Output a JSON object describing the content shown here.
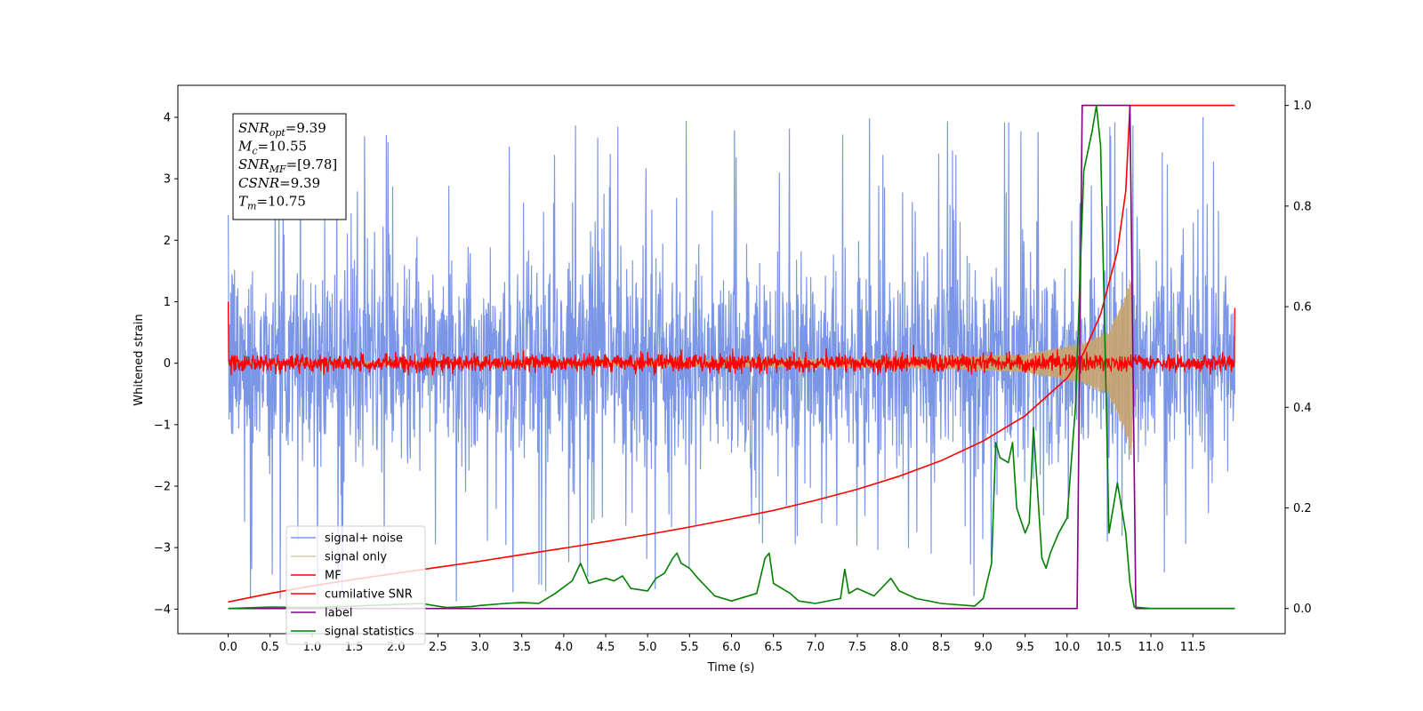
{
  "chart_data": {
    "type": "line",
    "xlabel": "Time (s)",
    "ylabel": "Whitened strain",
    "xlim": [
      -0.6,
      12.6
    ],
    "ylim_left": [
      -4.4,
      4.52
    ],
    "ylim_right": [
      -0.05,
      1.04
    ],
    "x_ticks": [
      0.0,
      0.5,
      1.0,
      1.5,
      2.0,
      2.5,
      3.0,
      3.5,
      4.0,
      4.5,
      5.0,
      5.5,
      6.0,
      6.5,
      7.0,
      7.5,
      8.0,
      8.5,
      9.0,
      9.5,
      10.0,
      10.5,
      11.0,
      11.5
    ],
    "x_tick_labels": [
      "0.0",
      "0.5",
      "1.0",
      "1.5",
      "2.0",
      "2.5",
      "3.0",
      "3.5",
      "4.0",
      "4.5",
      "5.0",
      "5.5",
      "6.0",
      "6.5",
      "7.0",
      "7.5",
      "8.0",
      "8.5",
      "9.0",
      "9.5",
      "10.0",
      "10.5",
      "11.0",
      "11.5"
    ],
    "y_left_ticks": [
      -4,
      -3,
      -2,
      -1,
      0,
      1,
      2,
      3,
      4
    ],
    "y_left_tick_labels": [
      "−4",
      "−3",
      "−2",
      "−1",
      "0",
      "1",
      "2",
      "3",
      "4"
    ],
    "y_right_ticks": [
      0.0,
      0.2,
      0.4,
      0.6,
      0.8,
      1.0
    ],
    "y_right_tick_labels": [
      "0.0",
      "0.2",
      "0.4",
      "0.6",
      "0.8",
      "1.0"
    ],
    "grid": false,
    "legend_position": "lower-left",
    "annotation": [
      {
        "base": "SNR",
        "sub": "opt",
        "value": "=9.39"
      },
      {
        "base": "M",
        "sub": "c",
        "value": "=10.55"
      },
      {
        "base": "SNR",
        "sub": "MF",
        "value": "=[9.78]"
      },
      {
        "base": "CSNR",
        "sub": "",
        "value": "=9.39"
      },
      {
        "base": "T",
        "sub": "m",
        "value": "=10.75"
      }
    ],
    "series": [
      {
        "name": "signal+ noise",
        "axis": "left",
        "color": "#7b96e6",
        "style": "noise",
        "x_range": [
          0.0,
          12.0
        ],
        "envelope_typical": [
          -1.8,
          2.0
        ],
        "extremes": [
          -3.9,
          4.2
        ]
      },
      {
        "name": "signal only",
        "axis": "left",
        "color": "#c9a46e",
        "style": "chirp",
        "x_range": [
          0.0,
          10.78
        ],
        "amplitude": [
          [
            0.0,
            0.02
          ],
          [
            8.0,
            0.08
          ],
          [
            9.5,
            0.15
          ],
          [
            10.2,
            0.35
          ],
          [
            10.5,
            0.55
          ],
          [
            10.7,
            1.2
          ],
          [
            10.75,
            1.5
          ]
        ]
      },
      {
        "name": "MF",
        "axis": "left",
        "color": "#ff0000",
        "style": "noise",
        "x_range": [
          0.0,
          12.0
        ],
        "envelope_typical": [
          -0.12,
          0.12
        ],
        "extremes": [
          -0.2,
          0.35
        ],
        "edge_values": [
          1.0,
          0.9
        ]
      },
      {
        "name": "cumilative SNR",
        "axis": "right",
        "color": "#ff0000",
        "style": "line",
        "x": [
          0.0,
          0.5,
          1.0,
          1.5,
          2.0,
          2.5,
          3.0,
          3.5,
          4.0,
          4.5,
          5.0,
          5.5,
          6.0,
          6.5,
          7.0,
          7.5,
          8.0,
          8.5,
          9.0,
          9.5,
          10.0,
          10.2,
          10.4,
          10.6,
          10.7,
          10.75,
          11.0,
          12.0
        ],
        "y": [
          0.013,
          0.03,
          0.045,
          0.058,
          0.07,
          0.082,
          0.094,
          0.107,
          0.12,
          0.133,
          0.147,
          0.162,
          0.178,
          0.195,
          0.215,
          0.237,
          0.263,
          0.294,
          0.333,
          0.383,
          0.458,
          0.508,
          0.585,
          0.71,
          0.83,
          1.0,
          1.0,
          1.0
        ]
      },
      {
        "name": "label",
        "axis": "right",
        "color": "#800080",
        "style": "step",
        "x": [
          0.0,
          10.12,
          10.18,
          10.75,
          10.82,
          12.0
        ],
        "y": [
          0.0,
          0.0,
          1.0,
          1.0,
          0.0,
          0.0
        ]
      },
      {
        "name": "signal statistics",
        "axis": "right",
        "color": "#008000",
        "style": "line",
        "x": [
          0.0,
          0.5,
          1.0,
          1.5,
          2.0,
          2.3,
          2.6,
          2.9,
          3.0,
          3.3,
          3.5,
          3.7,
          3.9,
          4.1,
          4.2,
          4.3,
          4.5,
          4.6,
          4.7,
          4.8,
          5.0,
          5.1,
          5.2,
          5.3,
          5.35,
          5.4,
          5.5,
          5.6,
          5.8,
          6.0,
          6.3,
          6.4,
          6.45,
          6.5,
          6.7,
          6.8,
          7.0,
          7.3,
          7.35,
          7.4,
          7.5,
          7.7,
          7.9,
          8.0,
          8.2,
          8.5,
          8.9,
          9.0,
          9.1,
          9.15,
          9.2,
          9.3,
          9.35,
          9.4,
          9.5,
          9.55,
          9.6,
          9.7,
          9.75,
          9.8,
          9.9,
          10.0,
          10.1,
          10.2,
          10.3,
          10.35,
          10.4,
          10.45,
          10.5,
          10.6,
          10.65,
          10.7,
          10.75,
          10.8,
          11.0,
          12.0
        ],
        "y": [
          0.0,
          0.003,
          0.002,
          0.005,
          0.008,
          0.01,
          0.002,
          0.004,
          0.006,
          0.01,
          0.012,
          0.01,
          0.03,
          0.055,
          0.09,
          0.05,
          0.06,
          0.055,
          0.065,
          0.04,
          0.035,
          0.06,
          0.07,
          0.1,
          0.11,
          0.09,
          0.08,
          0.06,
          0.025,
          0.015,
          0.03,
          0.1,
          0.11,
          0.05,
          0.03,
          0.015,
          0.01,
          0.02,
          0.078,
          0.03,
          0.04,
          0.025,
          0.06,
          0.035,
          0.02,
          0.01,
          0.005,
          0.02,
          0.09,
          0.33,
          0.3,
          0.29,
          0.33,
          0.2,
          0.15,
          0.17,
          0.36,
          0.1,
          0.08,
          0.11,
          0.15,
          0.18,
          0.4,
          0.87,
          0.95,
          1.0,
          0.92,
          0.55,
          0.15,
          0.25,
          0.2,
          0.15,
          0.05,
          0.003,
          0.0,
          0.0
        ]
      }
    ]
  }
}
